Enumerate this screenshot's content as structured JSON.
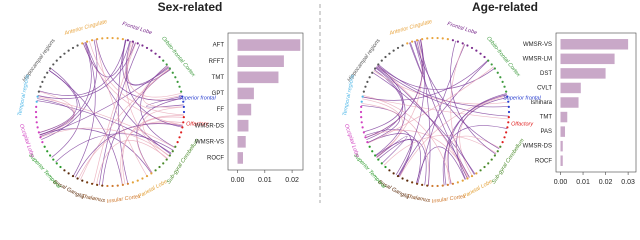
{
  "chart_data": [
    {
      "type": "bar",
      "orientation": "horizontal",
      "title": "Sex-related",
      "categories": [
        "AFT",
        "RFFT",
        "TMT",
        "GPT",
        "FF",
        "WMSR-DS",
        "WMSR-VS",
        "ROCF"
      ],
      "values": [
        0.023,
        0.017,
        0.015,
        0.006,
        0.005,
        0.004,
        0.003,
        0.002
      ],
      "color": "#c9a8c8",
      "xlim": [
        -0.0035,
        0.024
      ],
      "xticks": [
        {
          "value": 0,
          "label": "0.00"
        },
        {
          "value": 0.01,
          "label": "0.01"
        },
        {
          "value": 0.02,
          "label": "0.02"
        }
      ]
    },
    {
      "type": "bar",
      "orientation": "horizontal",
      "title": "Age-related",
      "categories": [
        "WMSR-VS",
        "WMSR-LM",
        "DST",
        "CVLT",
        "Ishihara",
        "TMT",
        "PAS",
        "WMSR-DS",
        "ROCF"
      ],
      "values": [
        0.03,
        0.024,
        0.02,
        0.009,
        0.008,
        0.003,
        0.002,
        0.001,
        0.001
      ],
      "color": "#c9a8c8",
      "xlim": [
        -0.002,
        0.0335
      ],
      "xticks": [
        {
          "value": 0,
          "label": "0.00"
        },
        {
          "value": 0.01,
          "label": "0.01"
        },
        {
          "value": 0.02,
          "label": "0.02"
        },
        {
          "value": 0.03,
          "label": "0.03"
        }
      ]
    }
  ],
  "regions": [
    "Hippocampal regions",
    "Anterior Cingulate",
    "Frontal Lobe",
    "Orbito-frontal Cortex",
    "Superior frontal",
    "Olfactory",
    "Sub-gyral Cerebellum",
    "Parietal Lobe",
    "Insular Cortex",
    "Thalamus",
    "Basal Ganglia",
    "Superior Temporal",
    "Occipital Lobe",
    "Temporal regions"
  ]
}
